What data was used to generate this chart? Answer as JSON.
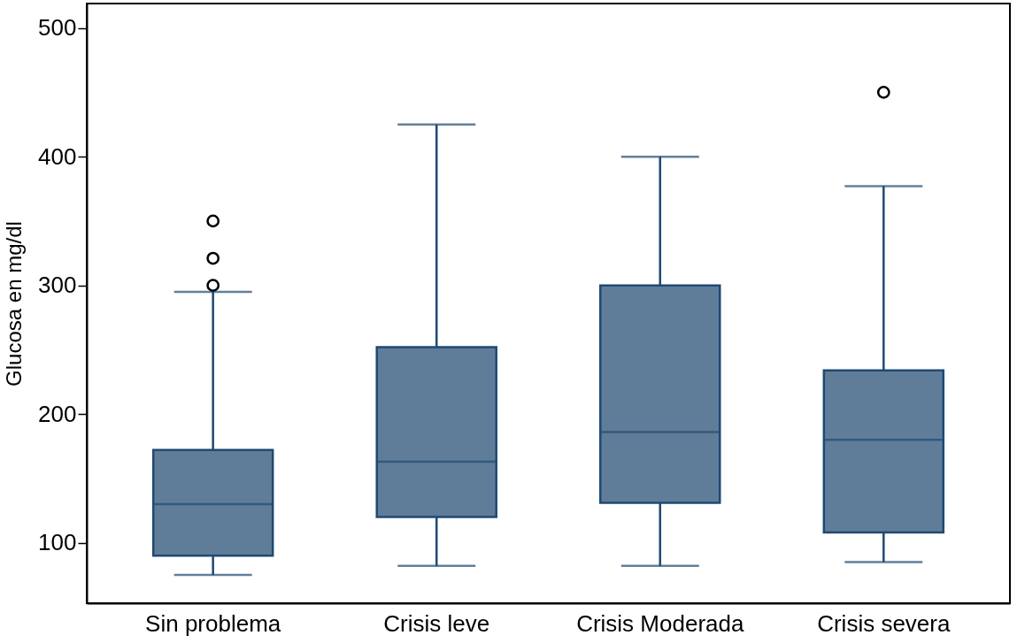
{
  "chart_data": {
    "type": "box",
    "ylabel": "Glucosa en mg/dl",
    "categories": [
      "Sin problema",
      "Crisis leve",
      "Crisis Moderada",
      "Crisis severa"
    ],
    "boxes": [
      {
        "low": 75,
        "q1": 90,
        "median": 130,
        "q3": 172,
        "high": 295,
        "outliers": [
          300,
          321,
          350
        ]
      },
      {
        "low": 82,
        "q1": 120,
        "median": 163,
        "q3": 252,
        "high": 425
      },
      {
        "low": 82,
        "q1": 131,
        "median": 186,
        "q3": 300,
        "high": 400
      },
      {
        "low": 85,
        "q1": 108,
        "median": 180,
        "q3": 234,
        "high": 377,
        "outliers": [
          450
        ]
      }
    ],
    "color": "#5f7d99",
    "ylim": [
      53,
      519
    ],
    "yticks": [
      100,
      200,
      300,
      400,
      500
    ],
    "grid": false
  }
}
